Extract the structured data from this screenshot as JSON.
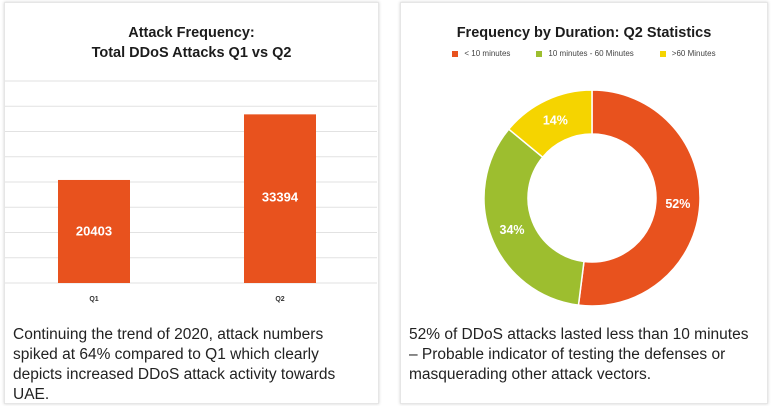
{
  "chart_data": [
    {
      "type": "bar",
      "title_line1": "Attack Frequency:",
      "title_line2": "Total DDoS Attacks Q1 vs Q2",
      "categories": [
        "Q1",
        "Q2"
      ],
      "values": [
        20403,
        33394
      ],
      "ylim": [
        0,
        40000
      ],
      "grid": true,
      "color": "#e8521e",
      "caption": "Continuing the trend of 2020, attack numbers spiked at 64% compared to Q1 which clearly depicts increased DDoS attack activity towards UAE."
    },
    {
      "type": "pie",
      "donut": true,
      "title": "Frequency by Duration: Q2 Statistics",
      "labels": [
        "< 10 minutes",
        "10 minutes - 60 Minutes",
        ">60 Minutes"
      ],
      "values": [
        52,
        34,
        14
      ],
      "value_labels": [
        "52%",
        "34%",
        "14%"
      ],
      "colors": [
        "#e8521e",
        "#9dbe2f",
        "#f5d400"
      ],
      "legend_position": "top",
      "caption": "52% of DDoS attacks lasted less than 10 minutes – Probable indicator of testing the defenses or masquerading other attack vectors."
    }
  ]
}
